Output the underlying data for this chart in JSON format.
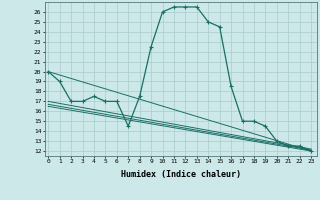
{
  "xlabel": "Humidex (Indice chaleur)",
  "bg_color": "#cce8e8",
  "grid_color": "#aacccc",
  "line_color": "#1a6e65",
  "x_ticks": [
    0,
    1,
    2,
    3,
    4,
    5,
    6,
    7,
    8,
    9,
    10,
    11,
    12,
    13,
    14,
    15,
    16,
    17,
    18,
    19,
    20,
    21,
    22,
    23
  ],
  "y_ticks": [
    12,
    13,
    14,
    15,
    16,
    17,
    18,
    19,
    20,
    21,
    22,
    23,
    24,
    25,
    26
  ],
  "ylim": [
    11.5,
    27
  ],
  "xlim": [
    -0.3,
    23.5
  ],
  "main_y": [
    20,
    19,
    17,
    17,
    17.5,
    17,
    17,
    14.5,
    17.5,
    22.5,
    26,
    26.5,
    26.5,
    26.5,
    25,
    24.5,
    18.5,
    15,
    15,
    14.5,
    13,
    12.5,
    12.5,
    12
  ],
  "trend_lines": [
    [
      [
        0,
        23
      ],
      [
        20,
        12.0
      ]
    ],
    [
      [
        0,
        23
      ],
      [
        17.0,
        12.2
      ]
    ],
    [
      [
        0,
        23
      ],
      [
        16.7,
        12.1
      ]
    ],
    [
      [
        0,
        23
      ],
      [
        16.5,
        12.0
      ]
    ]
  ]
}
